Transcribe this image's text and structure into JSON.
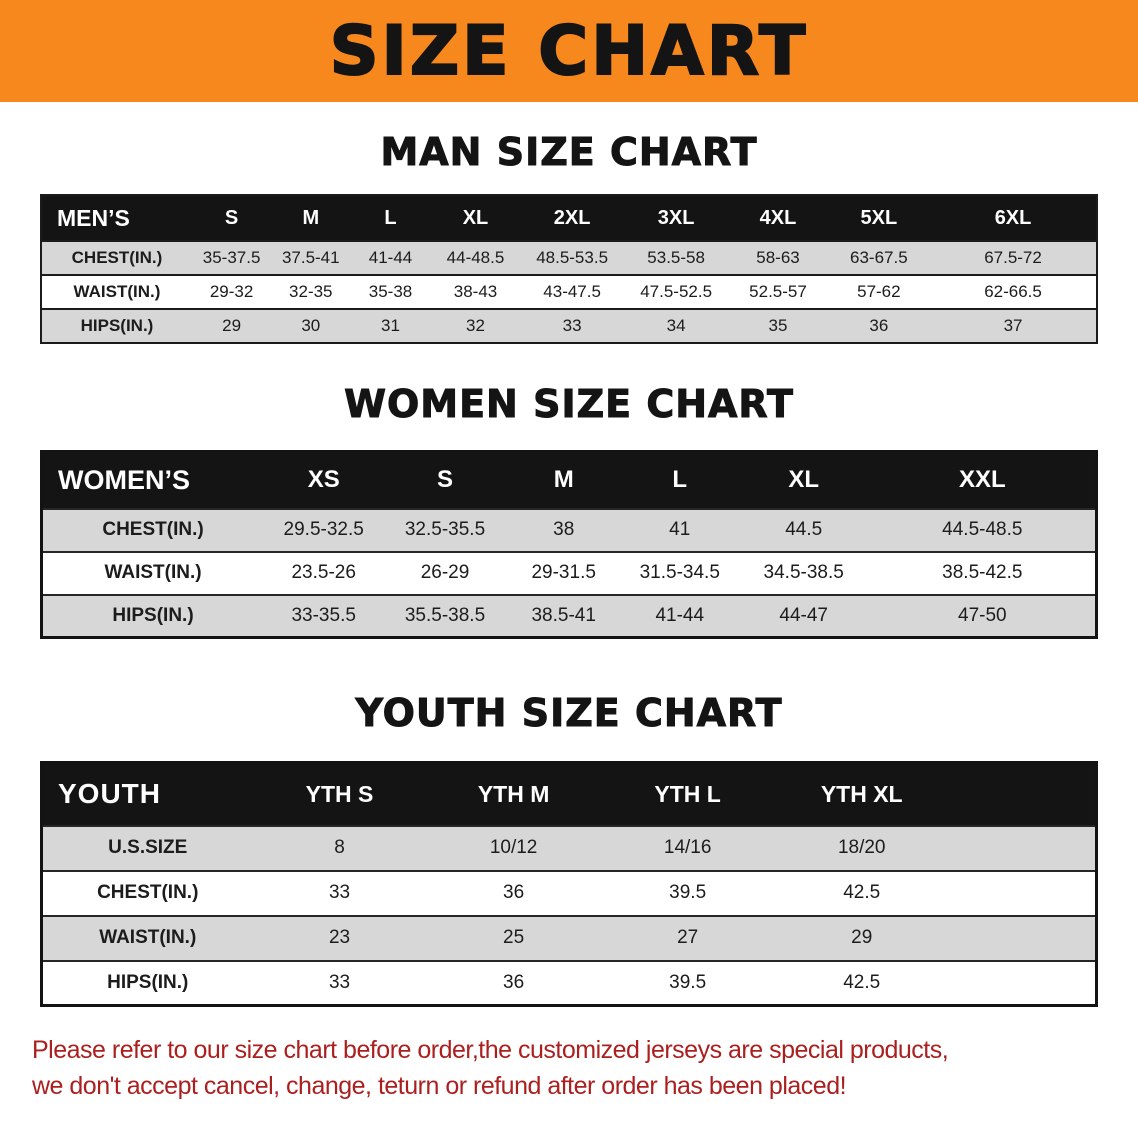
{
  "banner": {
    "title": "SIZE CHART"
  },
  "sections": [
    {
      "heading": "MAN SIZE CHART",
      "table": {
        "header": [
          "MEN’S",
          "S",
          "M",
          "L",
          "XL",
          "2XL",
          "3XL",
          "4XL",
          "5XL",
          "6XL"
        ],
        "rows": [
          [
            "CHEST(IN.)",
            "35-37.5",
            "37.5-41",
            "41-44",
            "44-48.5",
            "48.5-53.5",
            "53.5-58",
            "58-63",
            "63-67.5",
            "67.5-72"
          ],
          [
            "WAIST(IN.)",
            "29-32",
            "32-35",
            "35-38",
            "38-43",
            "43-47.5",
            "47.5-52.5",
            "52.5-57",
            "57-62",
            "62-66.5"
          ],
          [
            "HIPS(IN.)",
            "29",
            "30",
            "31",
            "32",
            "33",
            "34",
            "35",
            "36",
            "37"
          ]
        ]
      }
    },
    {
      "heading": "WOMEN SIZE CHART",
      "table": {
        "header": [
          "WOMEN’S",
          "XS",
          "S",
          "M",
          "L",
          "XL",
          "XXL"
        ],
        "rows": [
          [
            "CHEST(IN.)",
            "29.5-32.5",
            "32.5-35.5",
            "38",
            "41",
            "44.5",
            "44.5-48.5"
          ],
          [
            "WAIST(IN.)",
            "23.5-26",
            "26-29",
            "29-31.5",
            "31.5-34.5",
            "34.5-38.5",
            "38.5-42.5"
          ],
          [
            "HIPS(IN.)",
            "33-35.5",
            "35.5-38.5",
            "38.5-41",
            "41-44",
            "44-47",
            "47-50"
          ]
        ]
      }
    },
    {
      "heading": "YOUTH SIZE CHART",
      "table": {
        "header": [
          "YOUTH",
          "YTH S",
          "YTH M",
          "YTH L",
          "YTH XL"
        ],
        "rows": [
          [
            "U.S.SIZE",
            "8",
            "10/12",
            "14/16",
            "18/20"
          ],
          [
            "CHEST(IN.)",
            "33",
            "36",
            "39.5",
            "42.5"
          ],
          [
            "WAIST(IN.)",
            "23",
            "25",
            "27",
            "29"
          ],
          [
            "HIPS(IN.)",
            "33",
            "36",
            "39.5",
            "42.5"
          ]
        ]
      }
    }
  ],
  "footer": {
    "lines": [
      "Please refer to our size chart before order,the customized jerseys are special products,",
      "we don't accept cancel, change, teturn or refund after order has been placed!"
    ]
  },
  "colors": {
    "banner_bg": "#f6881e",
    "table_header_bg": "#141414",
    "row_alt": "#d7d7d7",
    "heading_text": "#141414",
    "footer_text": "#ab1f1f"
  }
}
